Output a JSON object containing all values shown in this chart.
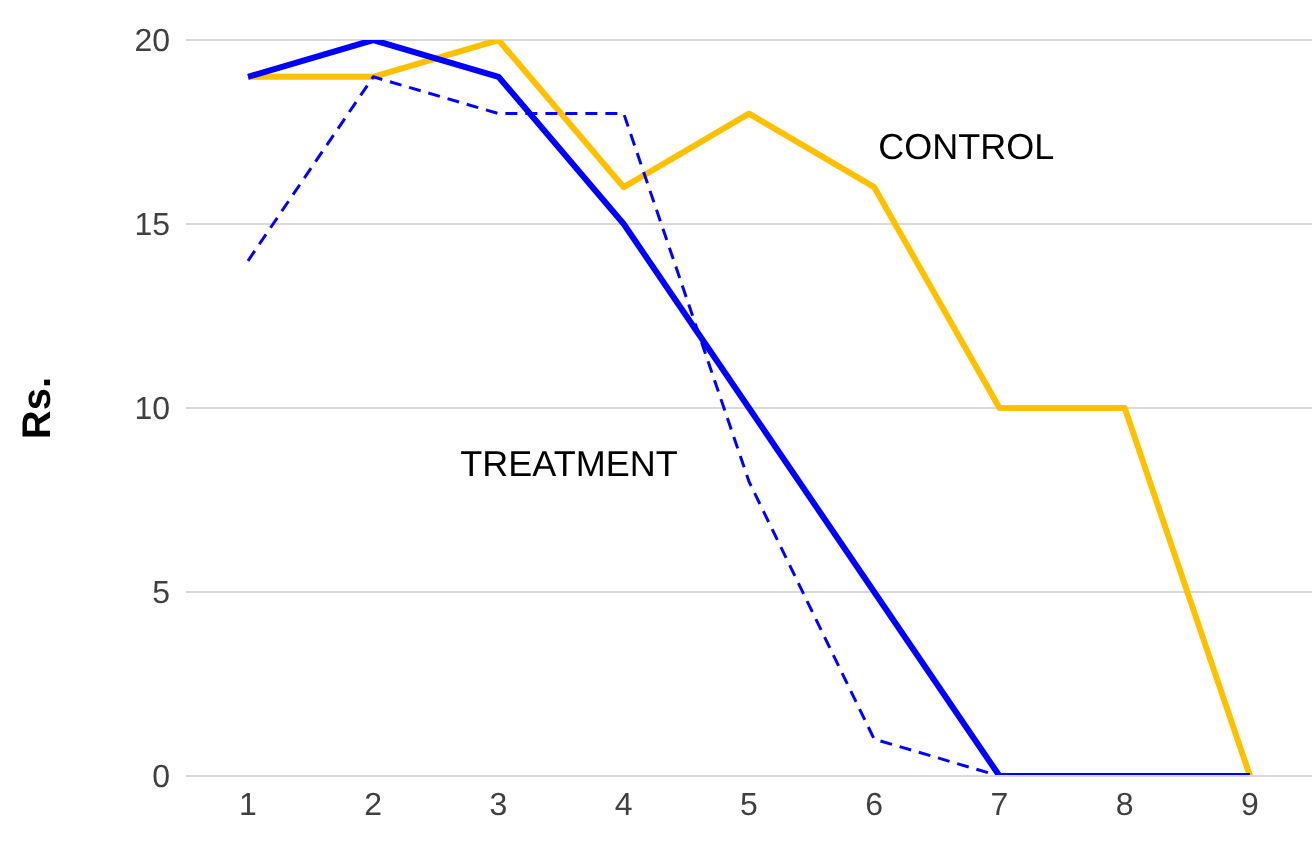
{
  "chart_data": {
    "type": "line",
    "ylabel": "Rs.",
    "categories": [
      "1",
      "2",
      "3",
      "4",
      "5",
      "6",
      "7",
      "8",
      "9"
    ],
    "series": [
      {
        "name": "CONTROL",
        "color": "#ffc000",
        "values": [
          19,
          19,
          20,
          16,
          18,
          16,
          10,
          10,
          0
        ]
      },
      {
        "name": "TREATMENT",
        "color": "#0000ff",
        "values": [
          19,
          20,
          19,
          15,
          10,
          5,
          0,
          0,
          0
        ]
      },
      {
        "color": "#0000ff",
        "values": [
          14,
          19,
          18,
          18,
          8,
          1,
          0,
          null,
          null
        ],
        "line_style": "dashed"
      }
    ],
    "ylim": [
      0,
      20
    ],
    "yticks": [
      0,
      5,
      10,
      15,
      20
    ],
    "grid": "y",
    "marker": "none"
  }
}
